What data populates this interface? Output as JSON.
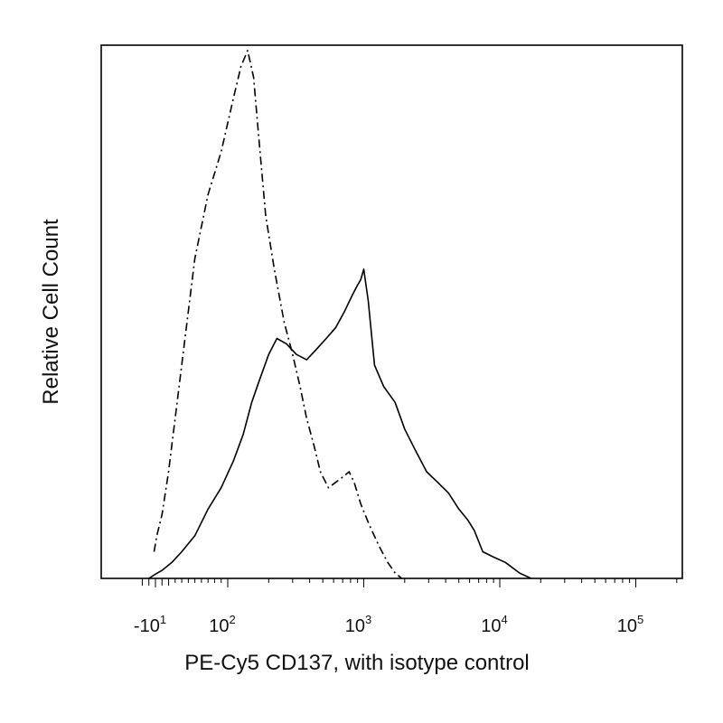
{
  "chart_data": {
    "type": "line",
    "title": "",
    "xlabel": "PE-Cy5 CD137, with isotype control",
    "ylabel": "Relative Cell Count",
    "x_scale": "biexponential",
    "xlim": [
      -30,
      300000
    ],
    "ylim": [
      0,
      100
    ],
    "grid": false,
    "legend": "none",
    "x_ticks": [
      {
        "base": "-10",
        "exp": "1",
        "value": -10
      },
      {
        "base": "10",
        "exp": "2",
        "value": 100
      },
      {
        "base": "10",
        "exp": "3",
        "value": 1000
      },
      {
        "base": "10",
        "exp": "4",
        "value": 10000
      },
      {
        "base": "10",
        "exp": "5",
        "value": 100000
      }
    ],
    "series": [
      {
        "style": "solid",
        "x": [
          -20,
          -10,
          0,
          15,
          30,
          50,
          70,
          90,
          110,
          130,
          150,
          170,
          200,
          230,
          270,
          320,
          380,
          450,
          530,
          620,
          720,
          820,
          900,
          950,
          1000,
          1080,
          1200,
          1400,
          1700,
          2000,
          2400,
          2900,
          3500,
          4200,
          5000,
          5800,
          6500,
          7500,
          9000,
          11000,
          14000,
          17000
        ],
        "y": [
          0,
          0.8,
          1.5,
          3,
          5,
          8,
          13,
          17,
          22,
          27,
          33,
          37,
          42,
          45,
          44,
          42,
          41,
          43,
          45,
          47,
          50,
          53,
          55,
          56,
          58,
          52,
          40,
          36,
          33,
          28,
          24,
          20,
          18,
          16,
          13,
          11,
          9,
          5,
          4,
          3,
          1,
          0
        ]
      },
      {
        "style": "dash-dot",
        "x": [
          -12,
          -8,
          0,
          10,
          20,
          35,
          50,
          70,
          90,
          110,
          125,
          140,
          155,
          170,
          190,
          220,
          260,
          300,
          340,
          380,
          430,
          480,
          550,
          620,
          700,
          780,
          850,
          950,
          1100,
          1300,
          1500,
          1700,
          1900
        ],
        "y": [
          5,
          8,
          12,
          20,
          30,
          45,
          60,
          72,
          80,
          90,
          96,
          99,
          94,
          82,
          68,
          58,
          48,
          42,
          36,
          30,
          25,
          20,
          17,
          18,
          19,
          20,
          18,
          14,
          10,
          6,
          3,
          1,
          0
        ]
      }
    ]
  }
}
